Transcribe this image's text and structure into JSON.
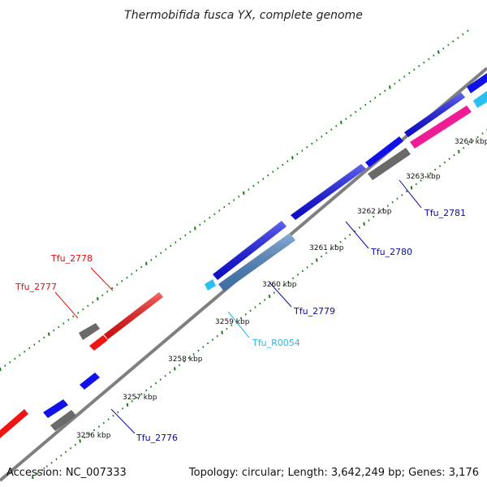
{
  "title": "Thermobifida fusca YX, complete genome",
  "footer": {
    "accession": "Accession: NC_007333",
    "summary": "Topology: circular; Length: 3,642,249 bp; Genes: 3,176"
  },
  "colors": {
    "backbone": "#7f7f7f",
    "tick": "#1a7a1a",
    "blue_gene": "#1010e8",
    "red_gene": "#f01414",
    "gray_gene": "#6a6a6a",
    "steel_gene": "#4a82c0",
    "magenta_gene": "#f01c96",
    "cyan_gene": "#28c0f0",
    "red_label": "#e01010",
    "blue_label": "#0b0ba8",
    "cyan_label": "#28b8e8"
  },
  "ticks": [
    {
      "label": "3256 kbp"
    },
    {
      "label": "3257 kbp"
    },
    {
      "label": "3258 kbp"
    },
    {
      "label": "3259 kbp"
    },
    {
      "label": "3260 kbp"
    },
    {
      "label": "3261 kbp"
    },
    {
      "label": "3262 kbp"
    },
    {
      "label": "3263 kbp"
    },
    {
      "label": "3264 kbp"
    }
  ],
  "gene_labels": [
    {
      "text": "Tfu_2778",
      "color": "red"
    },
    {
      "text": "Tfu_2777",
      "color": "red"
    },
    {
      "text": "Tfu_2776",
      "color": "blue"
    },
    {
      "text": "Tfu_R0054",
      "color": "cyan"
    },
    {
      "text": "Tfu_2779",
      "color": "blue"
    },
    {
      "text": "Tfu_2780",
      "color": "blue"
    },
    {
      "text": "Tfu_2781",
      "color": "blue"
    }
  ]
}
